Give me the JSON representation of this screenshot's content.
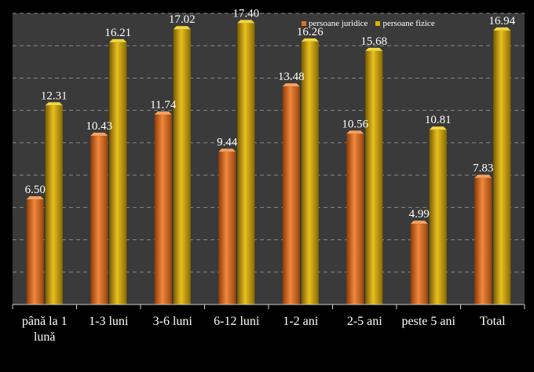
{
  "chart_data": {
    "type": "bar",
    "categories": [
      "până la 1 lună",
      "1-3 luni",
      "3-6 luni",
      "6-12 luni",
      "1-2 ani",
      "2-5 ani",
      "peste 5 ani",
      "Total"
    ],
    "series": [
      {
        "name": "persoane juridice",
        "values": [
          6.5,
          10.43,
          11.74,
          9.44,
          13.48,
          10.56,
          4.99,
          7.83
        ],
        "color": "#d2691e"
      },
      {
        "name": "persoane fizice",
        "values": [
          12.31,
          16.21,
          17.02,
          17.4,
          16.26,
          15.68,
          10.81,
          16.94
        ],
        "color": "#c8a000"
      }
    ],
    "value_labels": [
      [
        "6.50",
        "10.43",
        "11.74",
        "9.44",
        "13.48",
        "10.56",
        "4.99",
        "7.83"
      ],
      [
        "12.31",
        "16.21",
        "17.02",
        "17.40",
        "16.26",
        "15.68",
        "10.81",
        "16.94"
      ]
    ],
    "title": "",
    "xlabel": "",
    "ylabel": "",
    "ylim": [
      0,
      18
    ],
    "grid": true,
    "legend_position": "top-right",
    "plot_background": "#3a3a3a",
    "grid_color": "#888888"
  }
}
